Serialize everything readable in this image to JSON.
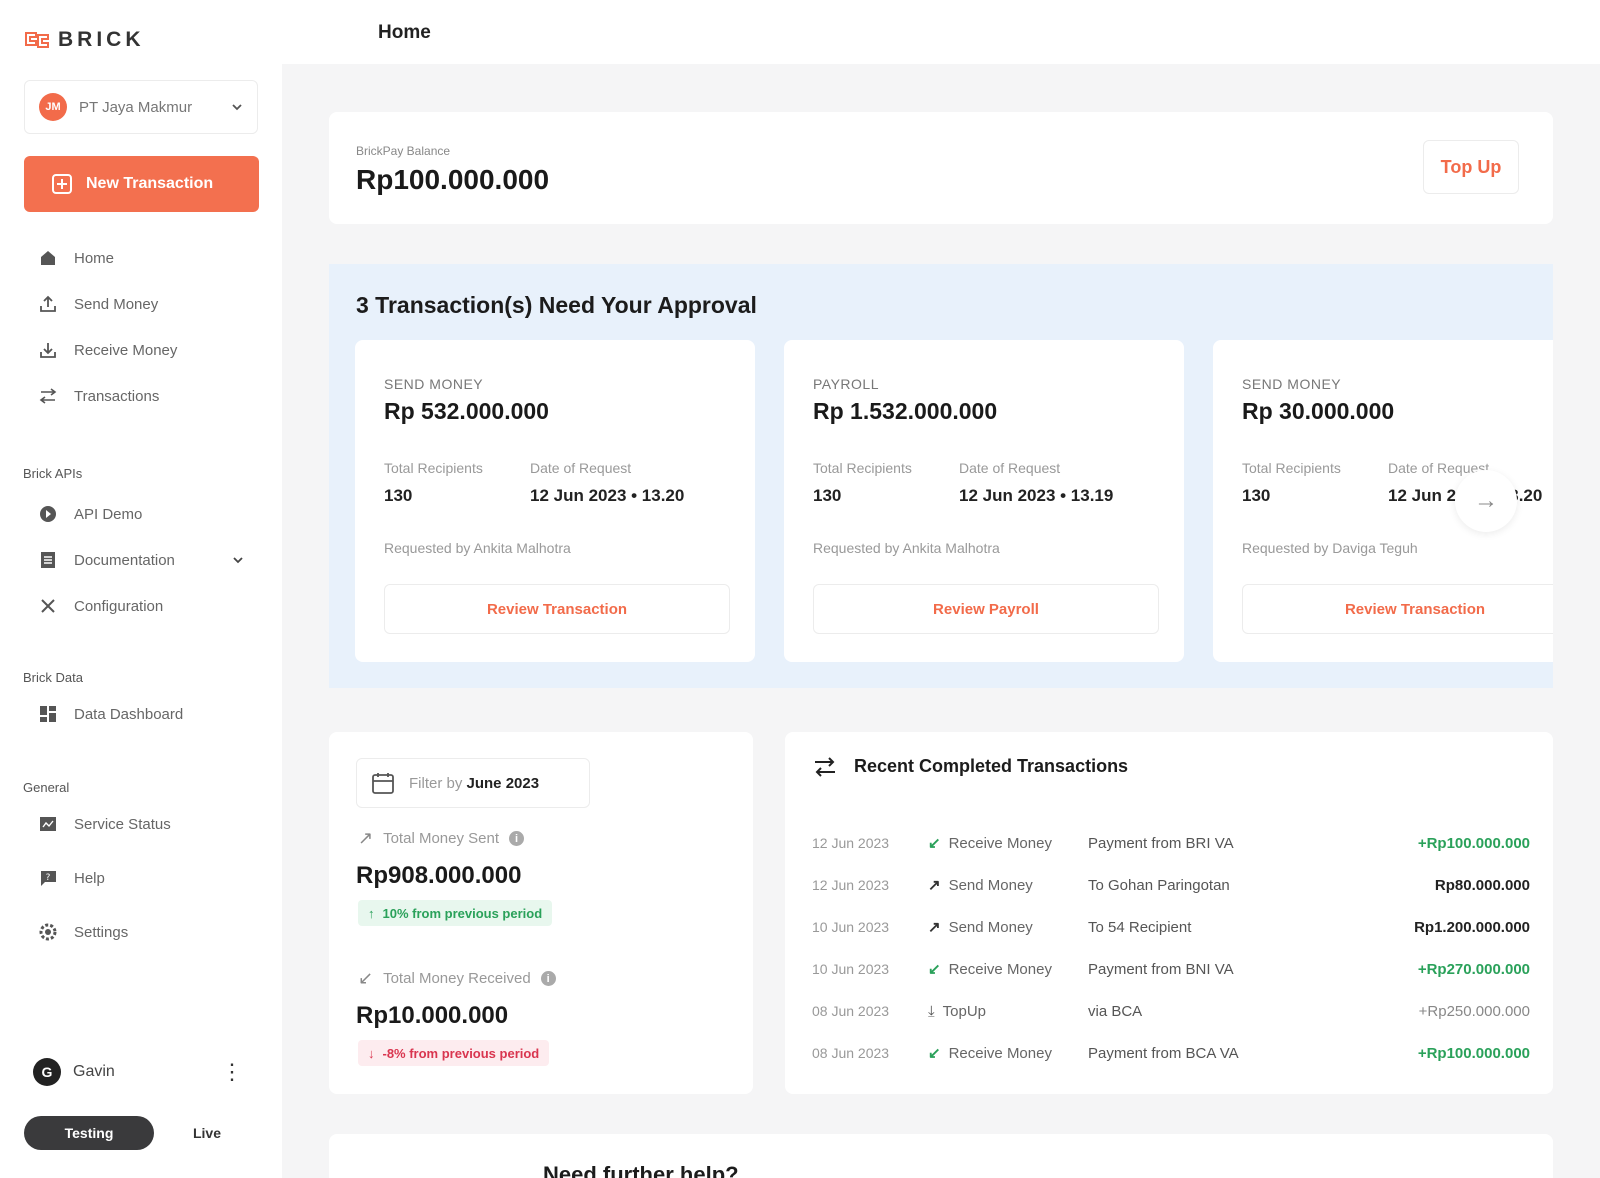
{
  "brand": {
    "name": "BRICK",
    "accent": "#f3704f"
  },
  "sidebar": {
    "org": {
      "initials": "JM",
      "name": "PT Jaya Makmur"
    },
    "new_transaction": "New Transaction",
    "main_items": [
      {
        "label": "Home",
        "icon": "home-icon"
      },
      {
        "label": "Send Money",
        "icon": "upload-icon"
      },
      {
        "label": "Receive Money",
        "icon": "download-icon"
      },
      {
        "label": "Transactions",
        "icon": "swap-icon"
      }
    ],
    "sections": {
      "apis": "Brick APIs",
      "data": "Brick Data",
      "general": "General"
    },
    "api_items": [
      {
        "label": "API Demo",
        "icon": "play-icon"
      },
      {
        "label": "Documentation",
        "icon": "document-icon"
      },
      {
        "label": "Configuration",
        "icon": "tools-icon"
      }
    ],
    "data_items": [
      {
        "label": "Data Dashboard",
        "icon": "dashboard-icon"
      }
    ],
    "general_items": [
      {
        "label": "Service Status",
        "icon": "status-icon"
      },
      {
        "label": "Help",
        "icon": "help-icon"
      },
      {
        "label": "Settings",
        "icon": "gear-icon"
      }
    ],
    "user": {
      "initial": "G",
      "name": "Gavin"
    },
    "env": {
      "testing": "Testing",
      "live": "Live"
    }
  },
  "header": {
    "title": "Home"
  },
  "balance": {
    "label": "BrickPay Balance",
    "value": "Rp100.000.000",
    "topup": "Top Up"
  },
  "approval": {
    "title": "3 Transaction(s) Need Your Approval",
    "recipients_label": "Total Recipients",
    "date_label": "Date of Request",
    "cards": [
      {
        "type": "SEND MONEY",
        "amount": "Rp 532.000.000",
        "recipients": "130",
        "date": "12 Jun 2023 • 13.20",
        "requested_by": "Requested by Ankita Malhotra",
        "action": "Review Transaction"
      },
      {
        "type": "PAYROLL",
        "amount": "Rp 1.532.000.000",
        "recipients": "130",
        "date": "12 Jun 2023 • 13.19",
        "requested_by": "Requested by Ankita Malhotra",
        "action": "Review Payroll"
      },
      {
        "type": "SEND MONEY",
        "amount": "Rp 30.000.000",
        "recipients": "130",
        "date": "12 Jun 2023 • 13.20",
        "requested_by": "Requested by Daviga Teguh",
        "action": "Review Transaction"
      }
    ]
  },
  "summary": {
    "filter_prefix": "Filter by",
    "filter_value": "June 2023",
    "sent_label": "Total Money Sent",
    "sent_value": "Rp908.000.000",
    "sent_trend": "10% from previous period",
    "received_label": "Total Money Received",
    "received_value": "Rp10.000.000",
    "received_trend": "-8% from previous period"
  },
  "recent": {
    "title": "Recent Completed Transactions",
    "rows": [
      {
        "date": "12 Jun 2023",
        "type": "Receive Money",
        "kind": "receive",
        "desc": "Payment from BRI VA",
        "amount": "+Rp100.000.000",
        "style": "pos"
      },
      {
        "date": "12 Jun 2023",
        "type": "Send Money",
        "kind": "send",
        "desc": "To Gohan Paringotan",
        "amount": "Rp80.000.000",
        "style": ""
      },
      {
        "date": "10 Jun 2023",
        "type": "Send Money",
        "kind": "send",
        "desc": "To 54 Recipient",
        "amount": "Rp1.200.000.000",
        "style": ""
      },
      {
        "date": "10 Jun 2023",
        "type": "Receive Money",
        "kind": "receive",
        "desc": "Payment from BNI VA",
        "amount": "+Rp270.000.000",
        "style": "pos"
      },
      {
        "date": "08 Jun 2023",
        "type": "TopUp",
        "kind": "topup",
        "desc": "via BCA",
        "amount": "+Rp250.000.000",
        "style": "muted"
      },
      {
        "date": "08 Jun 2023",
        "type": "Receive Money",
        "kind": "receive",
        "desc": "Payment from BCA VA",
        "amount": "+Rp100.000.000",
        "style": "pos"
      }
    ]
  },
  "help": {
    "title": "Need further help?"
  }
}
